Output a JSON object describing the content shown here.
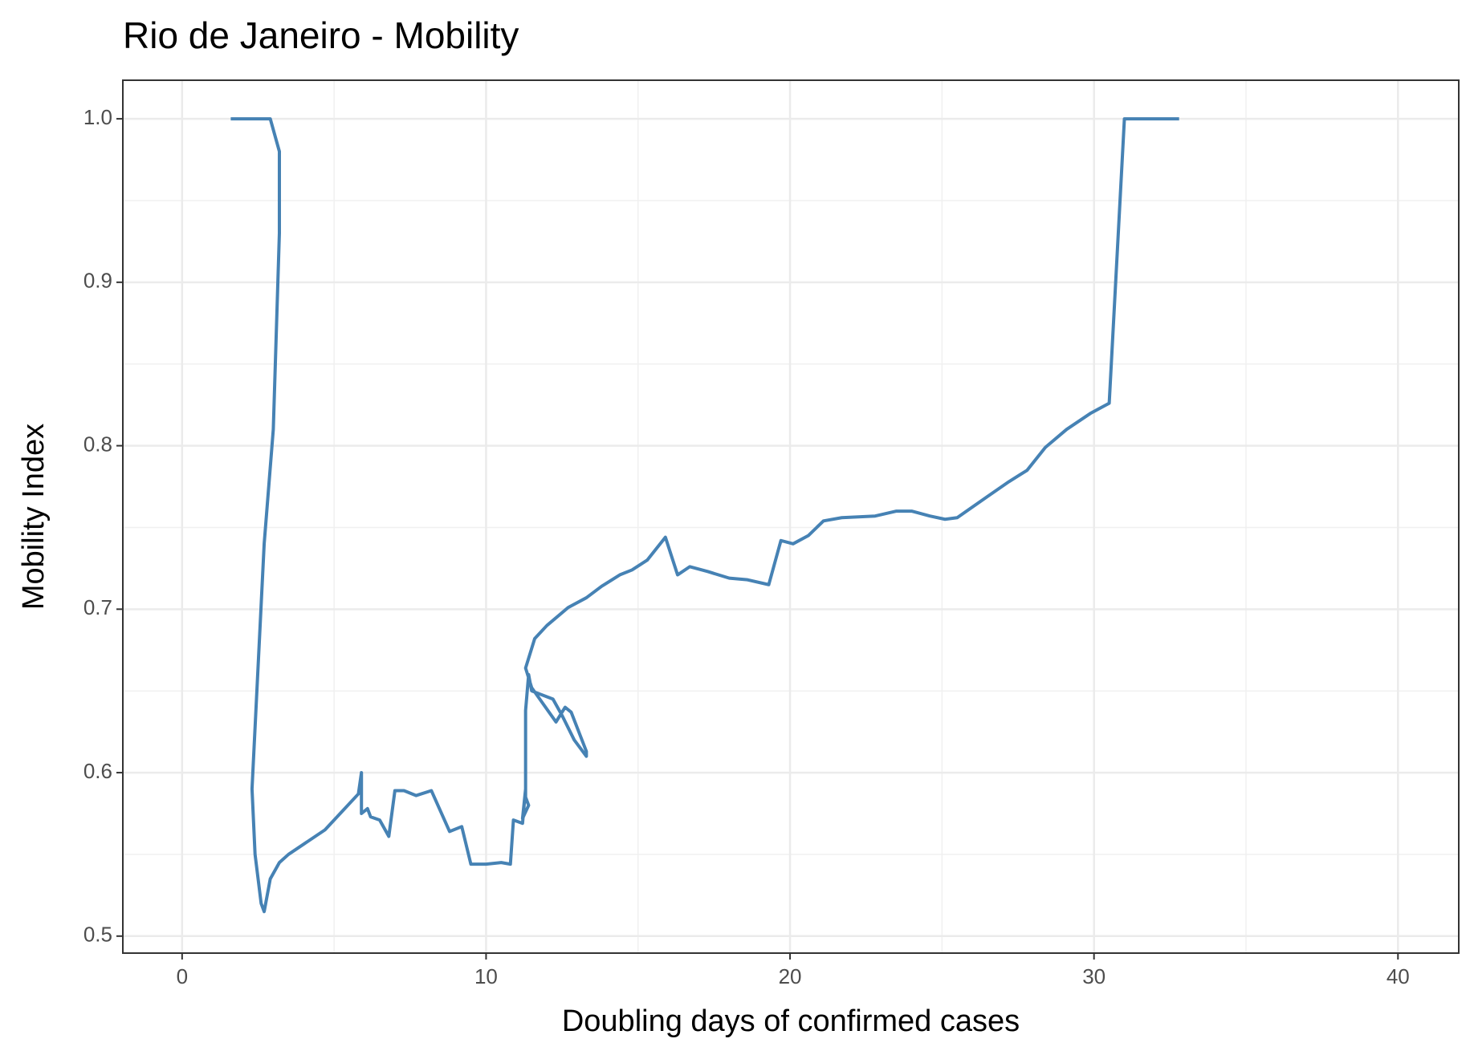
{
  "chart_data": {
    "type": "line",
    "title": "Rio de Janeiro - Mobility",
    "x_label": "Doubling days of confirmed cases",
    "y_label": "Mobility Index",
    "xlim": [
      -1.95,
      42.0
    ],
    "ylim": [
      0.4896,
      1.0236
    ],
    "xticks": [
      0,
      10,
      20,
      30,
      40
    ],
    "yticks": [
      0.5,
      0.6,
      0.7,
      0.8,
      0.9,
      {
        "value": 1,
        "label": "1.0"
      }
    ],
    "grid": true,
    "series": [
      {
        "color": "#4682b4",
        "x": [
          1.6,
          2.9,
          3.2,
          3.2,
          3.0,
          2.7,
          2.3,
          2.4,
          2.6,
          2.7,
          2.9,
          3.2,
          3.5,
          4.7,
          5.2,
          5.8,
          5.9,
          5.9,
          6.1,
          6.2,
          6.5,
          6.8,
          7.0,
          7.3,
          7.7,
          8.2,
          8.8,
          9.2,
          9.5,
          10.0,
          10.5,
          10.8,
          10.9,
          11.2,
          11.3,
          11.2,
          11.4,
          11.3,
          11.3,
          11.4,
          11.5,
          12.2,
          12.5,
          12.9,
          13.3,
          13.3,
          12.8,
          12.6,
          12.3,
          11.5,
          11.3,
          11.6,
          12.0,
          12.7,
          13.3,
          13.8,
          14.4,
          14.8,
          15.3,
          15.9,
          16.3,
          16.7,
          17.3,
          18.0,
          18.6,
          19.3,
          19.7,
          20.1,
          20.6,
          21.1,
          21.7,
          22.8,
          23.5,
          24.0,
          24.6,
          25.1,
          25.5,
          26.5,
          27.2,
          27.8,
          28.4,
          29.1,
          29.9,
          30.5,
          31.0,
          32.8
        ],
        "values": [
          1.0,
          1.0,
          0.98,
          0.93,
          0.81,
          0.74,
          0.59,
          0.55,
          0.52,
          0.515,
          0.535,
          0.545,
          0.55,
          0.565,
          0.575,
          0.587,
          0.6,
          0.575,
          0.578,
          0.573,
          0.571,
          0.561,
          0.589,
          0.589,
          0.586,
          0.589,
          0.564,
          0.567,
          0.544,
          0.544,
          0.545,
          0.544,
          0.571,
          0.569,
          0.59,
          0.572,
          0.58,
          0.585,
          0.638,
          0.66,
          0.65,
          0.645,
          0.635,
          0.62,
          0.61,
          0.613,
          0.637,
          0.64,
          0.631,
          0.652,
          0.664,
          0.682,
          0.69,
          0.701,
          0.707,
          0.714,
          0.721,
          0.724,
          0.73,
          0.744,
          0.721,
          0.726,
          0.723,
          0.719,
          0.718,
          0.715,
          0.742,
          0.74,
          0.745,
          0.754,
          0.756,
          0.757,
          0.76,
          0.76,
          0.757,
          0.755,
          0.756,
          0.769,
          0.778,
          0.785,
          0.799,
          0.81,
          0.82,
          0.826,
          1.0,
          1.0
        ]
      }
    ]
  }
}
